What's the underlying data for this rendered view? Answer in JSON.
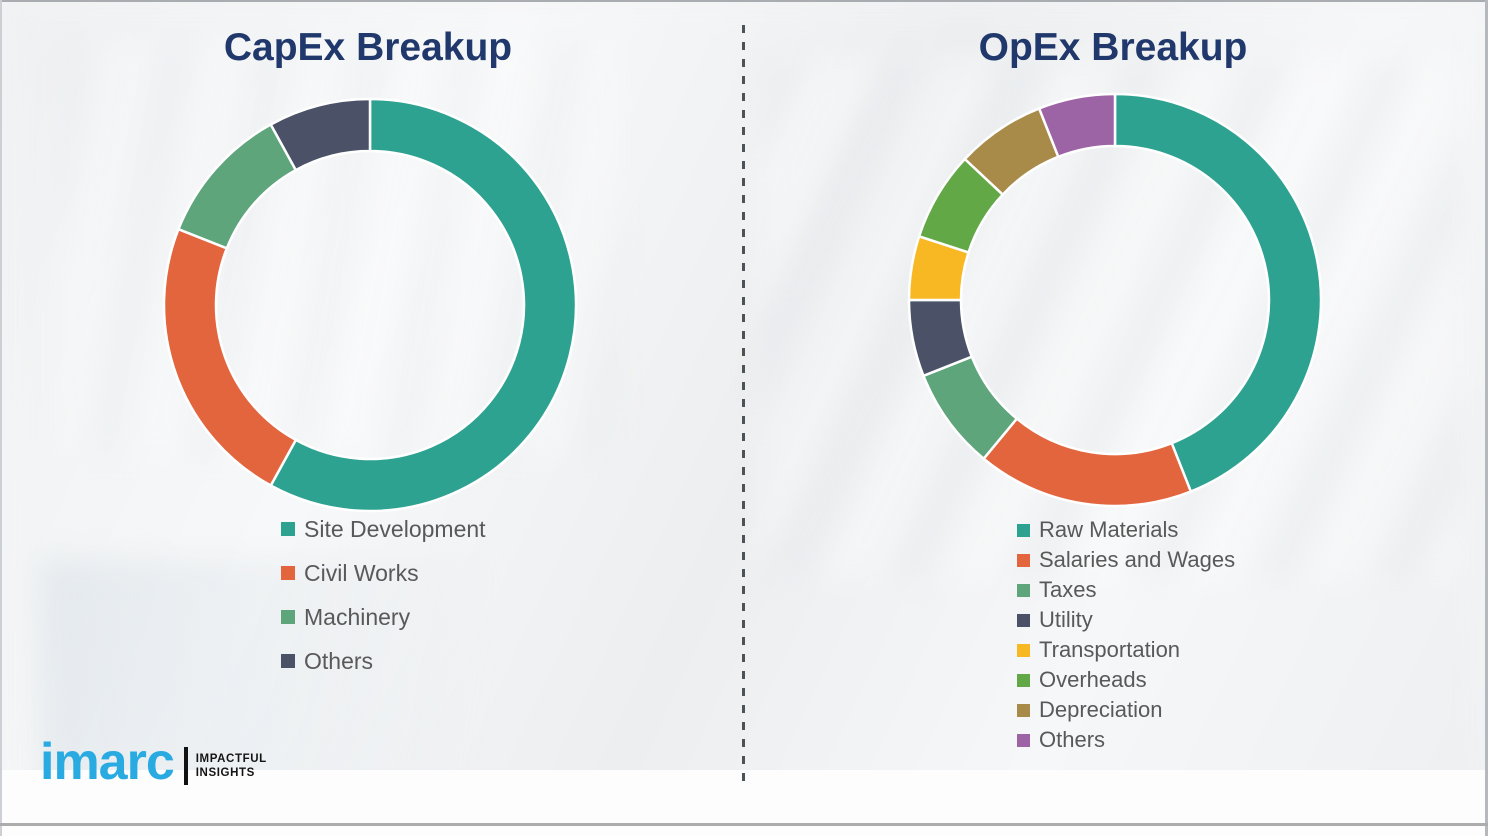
{
  "theme": {
    "title_color": "#20386b",
    "legend_text_color": "#595959",
    "background_color": "#f3f4f6",
    "divider_color": "#4d5257",
    "separator_stroke": "#ffffff"
  },
  "chart_data": [
    {
      "type": "pie",
      "donut": true,
      "title": "CapEx Breakup",
      "labels": [
        "Site Development",
        "Civil Works",
        "Machinery",
        "Others"
      ],
      "values": [
        58,
        23,
        11,
        8
      ],
      "values_estimated": true,
      "unit": "percent",
      "colors": [
        "#2ea291",
        "#e2653e",
        "#5fa57c",
        "#4b5268"
      ],
      "start_angle_deg": 0,
      "direction": "clockwise",
      "legend_position": "bottom-left",
      "data_labels_shown": false
    },
    {
      "type": "pie",
      "donut": true,
      "title": "OpEx Breakup",
      "labels": [
        "Raw Materials",
        "Salaries and Wages",
        "Taxes",
        "Utility",
        "Transportation",
        "Overheads",
        "Depreciation",
        "Others"
      ],
      "values": [
        44,
        17,
        8,
        6,
        5,
        7,
        7,
        6
      ],
      "values_estimated": true,
      "unit": "percent",
      "colors": [
        "#2ea291",
        "#e2653e",
        "#5fa57c",
        "#4b5268",
        "#f8b824",
        "#63a847",
        "#a88b49",
        "#9d64a5"
      ],
      "start_angle_deg": 0,
      "direction": "clockwise",
      "legend_position": "bottom-left",
      "data_labels_shown": false
    }
  ],
  "logo": {
    "wordmark": "imarc",
    "tagline_line1": "IMPACTFUL",
    "tagline_line2": "INSIGHTS",
    "wordmark_color": "#29abe2"
  }
}
